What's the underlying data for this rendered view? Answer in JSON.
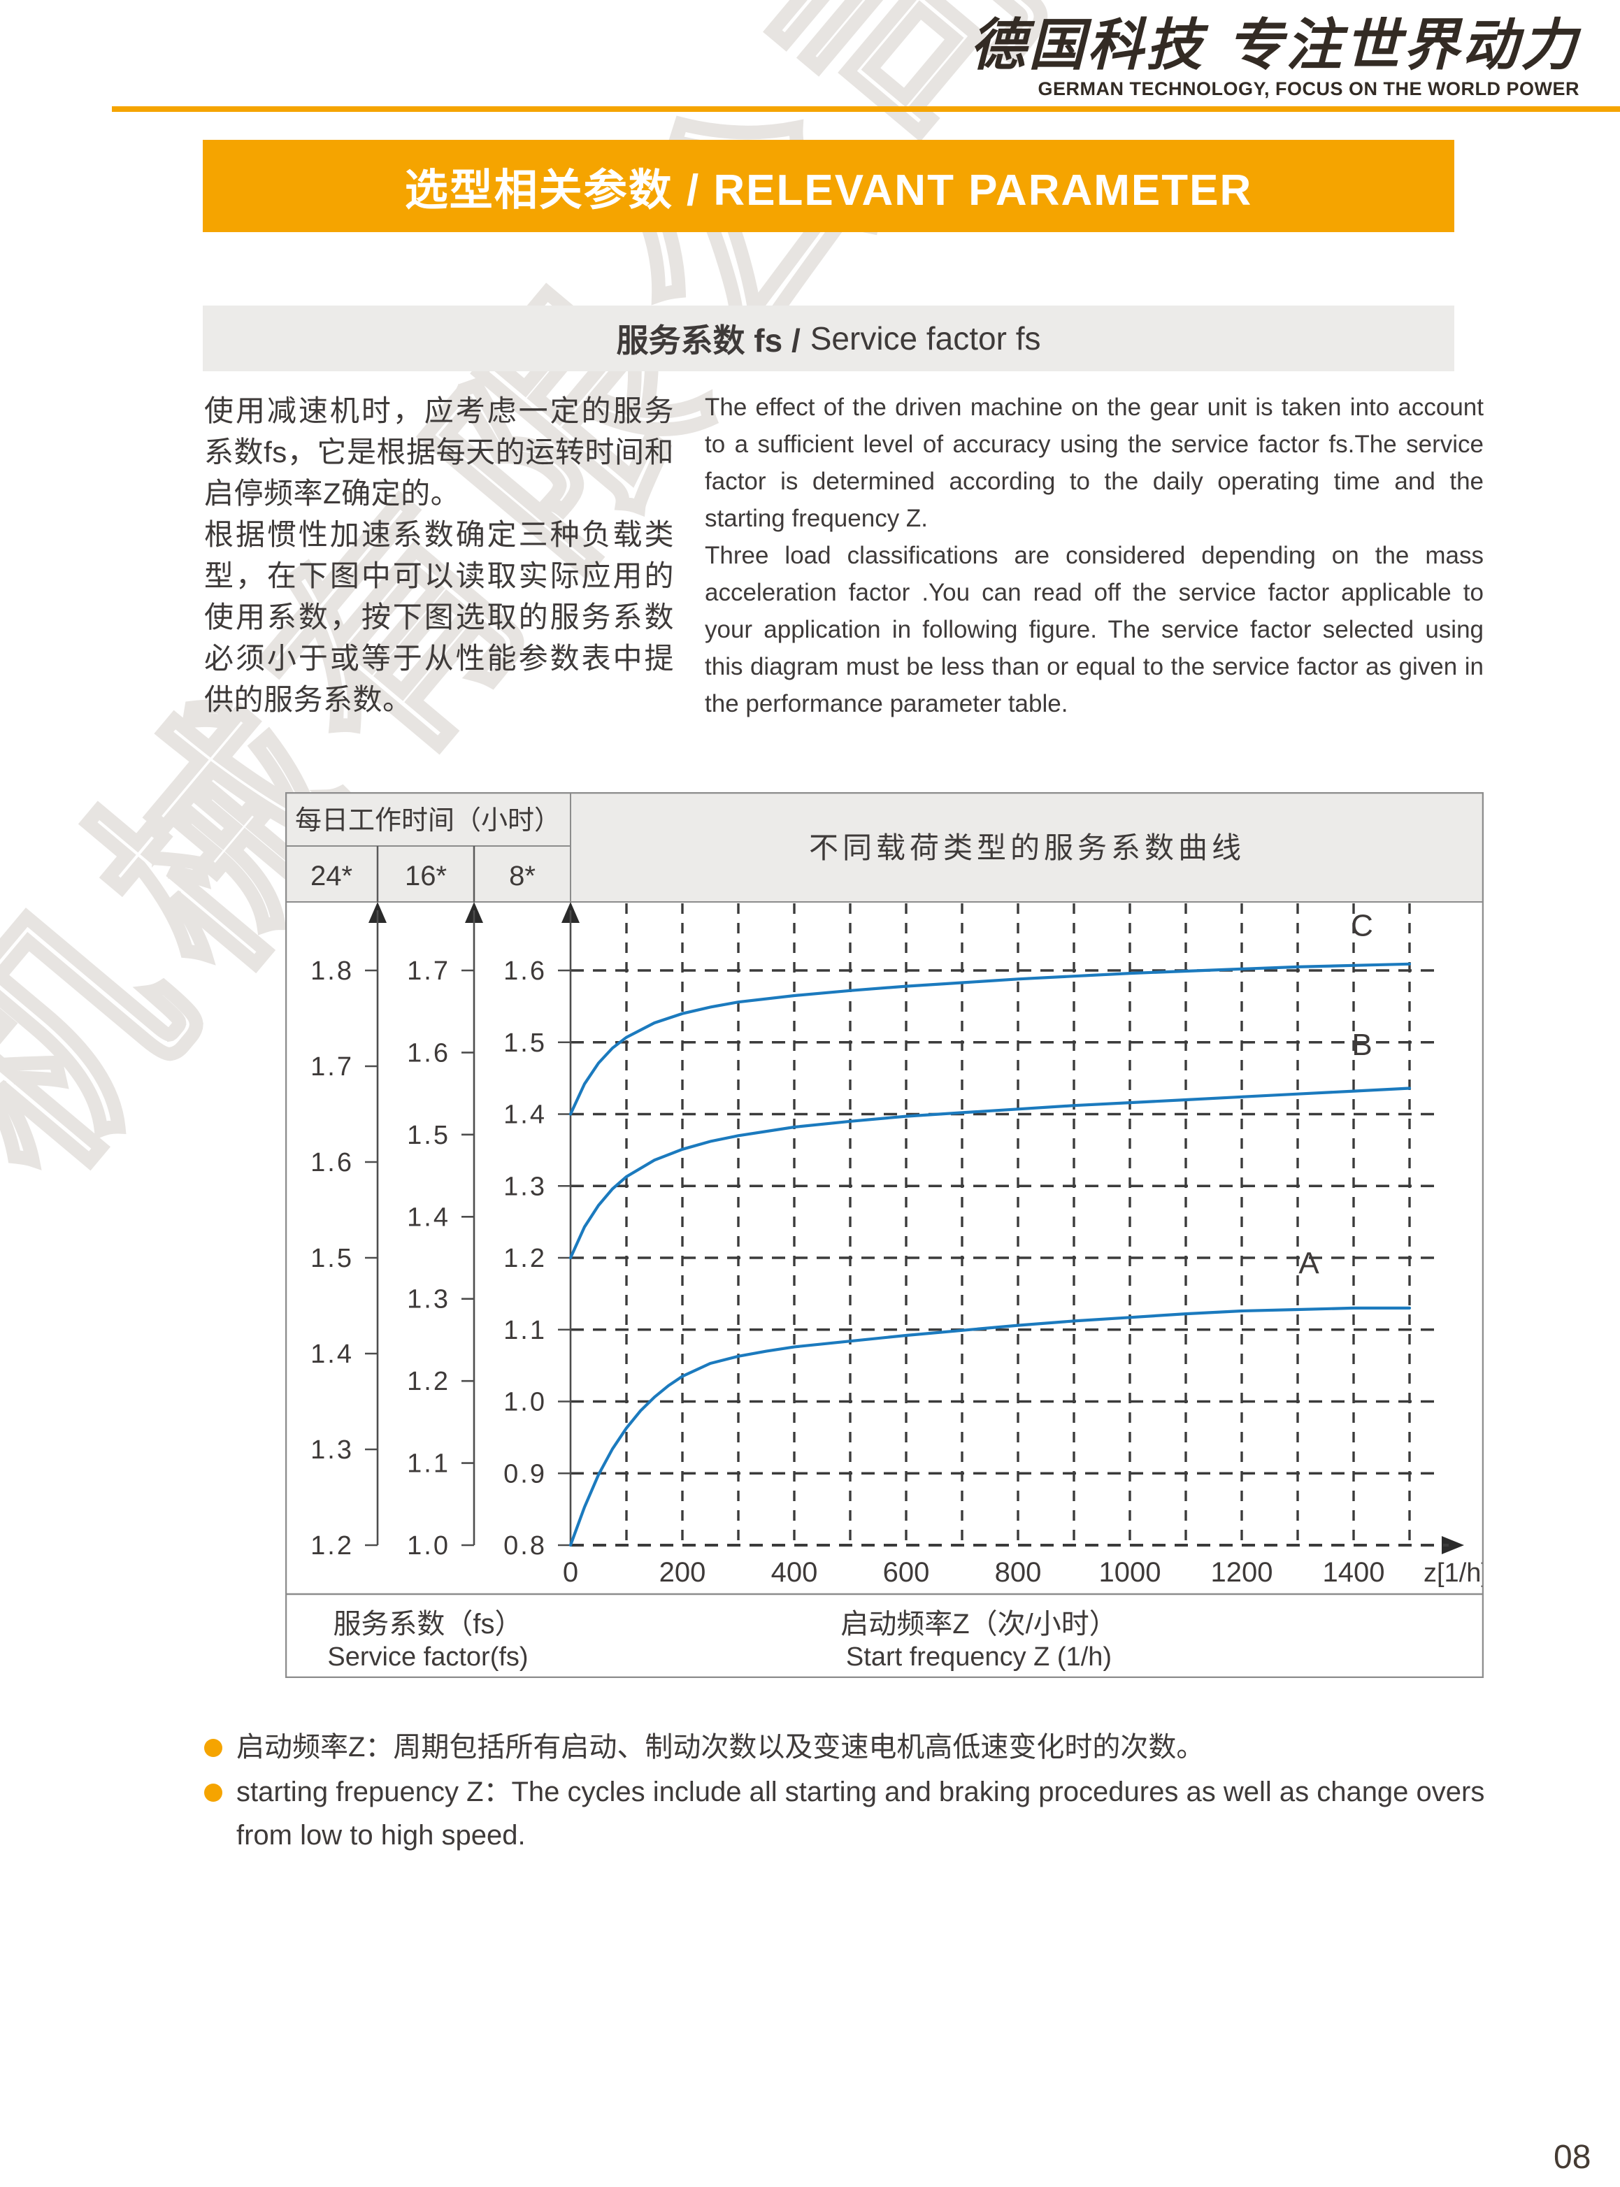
{
  "colors": {
    "accent": "#F5A400",
    "curve_blue": "#1B7ABE",
    "grid_dark": "#3B3B3B",
    "panel_gray": "#ECEBE9"
  },
  "header": {
    "logo_zh": "德国科技 专注世界动力",
    "logo_en": "GERMAN TECHNOLOGY, FOCUS ON THE WORLD POWER"
  },
  "banner": {
    "title": "选型相关参数 / RELEVANT PARAMETER"
  },
  "section": {
    "title_zh": "服务系数 fs /",
    "title_en": "Service factor fs"
  },
  "intro": {
    "zh_paragraphs": [
      "使用减速机时，应考虑一定的服务系数fs，它是根据每天的运转时间和启停频率Z确定的。",
      "根据惯性加速系数确定三种负载类型，在下图中可以读取实际应用的使用系数，按下图选取的服务系数必须小于或等于从性能参数表中提供的服务系数。"
    ],
    "en_paragraphs": [
      "The effect of the driven machine on the gear unit is taken into account to a sufficient level of accuracy using the service factor fs.The service factor is determined according to the daily operating time and the starting frequency Z.",
      "Three load classifications are considered depending on the mass acceleration factor .You can read off the service factor applicable to your application in following figure. The service factor selected using this diagram must be less than or equal to the service factor as given in the performance parameter table."
    ]
  },
  "watermark": "机械有限公司",
  "chart_data": {
    "type": "line",
    "title": "不同载荷类型的服务系数曲线",
    "table_title": "每日工作时间（小时）",
    "day_columns": [
      "24*",
      "16*",
      "8*"
    ],
    "y_axes": [
      {
        "name": "24h",
        "ticks": [
          "1.8",
          "1.7",
          "1.6",
          "1.5",
          "1.4",
          "1.3",
          "1.2"
        ]
      },
      {
        "name": "16h",
        "ticks": [
          "1.7",
          "1.6",
          "1.5",
          "1.4",
          "1.3",
          "1.2",
          "1.1",
          "1.0"
        ]
      },
      {
        "name": "8h",
        "ticks": [
          "1.6",
          "1.5",
          "1.4",
          "1.3",
          "1.2",
          "1.1",
          "1.0",
          "0.9",
          "0.8"
        ]
      }
    ],
    "x_ticks": [
      "0",
      "200",
      "400",
      "600",
      "800",
      "1000",
      "1200",
      "1400"
    ],
    "x_unit": "z[1/h]",
    "x_range": [
      0,
      1500
    ],
    "y_range_8h": [
      0.8,
      1.6
    ],
    "grid": "dashed, vertical every 100 z, horizontal every 0.1 fs (8h scale)",
    "series": [
      {
        "name": "C",
        "label_pos": {
          "z": 1415,
          "fs": 1.648
        },
        "points": [
          [
            0,
            1.4
          ],
          [
            25,
            1.442
          ],
          [
            50,
            1.471
          ],
          [
            75,
            1.492
          ],
          [
            100,
            1.507
          ],
          [
            150,
            1.527
          ],
          [
            200,
            1.54
          ],
          [
            250,
            1.549
          ],
          [
            300,
            1.556
          ],
          [
            400,
            1.565
          ],
          [
            500,
            1.572
          ],
          [
            600,
            1.578
          ],
          [
            700,
            1.583
          ],
          [
            800,
            1.588
          ],
          [
            900,
            1.592
          ],
          [
            1000,
            1.596
          ],
          [
            1100,
            1.599
          ],
          [
            1200,
            1.602
          ],
          [
            1300,
            1.605
          ],
          [
            1400,
            1.607
          ],
          [
            1500,
            1.609
          ]
        ]
      },
      {
        "name": "B",
        "label_pos": {
          "z": 1415,
          "fs": 1.482
        },
        "points": [
          [
            0,
            1.2
          ],
          [
            25,
            1.243
          ],
          [
            50,
            1.273
          ],
          [
            75,
            1.296
          ],
          [
            100,
            1.313
          ],
          [
            150,
            1.336
          ],
          [
            200,
            1.351
          ],
          [
            250,
            1.362
          ],
          [
            300,
            1.37
          ],
          [
            400,
            1.382
          ],
          [
            500,
            1.39
          ],
          [
            600,
            1.397
          ],
          [
            700,
            1.402
          ],
          [
            800,
            1.407
          ],
          [
            900,
            1.412
          ],
          [
            1000,
            1.416
          ],
          [
            1100,
            1.42
          ],
          [
            1200,
            1.424
          ],
          [
            1300,
            1.428
          ],
          [
            1400,
            1.432
          ],
          [
            1500,
            1.436
          ]
        ]
      },
      {
        "name": "A",
        "label_pos": {
          "z": 1320,
          "fs": 1.178
        },
        "points": [
          [
            0,
            0.8
          ],
          [
            25,
            0.853
          ],
          [
            50,
            0.898
          ],
          [
            75,
            0.934
          ],
          [
            100,
            0.963
          ],
          [
            125,
            0.987
          ],
          [
            150,
            1.006
          ],
          [
            175,
            1.022
          ],
          [
            200,
            1.035
          ],
          [
            250,
            1.053
          ],
          [
            300,
            1.063
          ],
          [
            350,
            1.07
          ],
          [
            400,
            1.076
          ],
          [
            500,
            1.084
          ],
          [
            600,
            1.092
          ],
          [
            700,
            1.099
          ],
          [
            800,
            1.106
          ],
          [
            900,
            1.112
          ],
          [
            1000,
            1.117
          ],
          [
            1100,
            1.122
          ],
          [
            1200,
            1.126
          ],
          [
            1300,
            1.128
          ],
          [
            1400,
            1.13
          ],
          [
            1500,
            1.13
          ]
        ]
      }
    ],
    "captions": {
      "fs_zh": "服务系数（fs）",
      "fs_en": "Service factor(fs)",
      "z_zh": "启动频率Z（次/小时）",
      "z_en": "Start frequency Z (1/h)"
    }
  },
  "notes": [
    {
      "text": "启动频率Z：周期包括所有启动、制动次数以及变速电机高低速变化时的次数。"
    },
    {
      "text": "starting frepuency Z：The cycles include all starting and braking procedures as well as change overs from low to high speed."
    }
  ],
  "page_number": "08"
}
